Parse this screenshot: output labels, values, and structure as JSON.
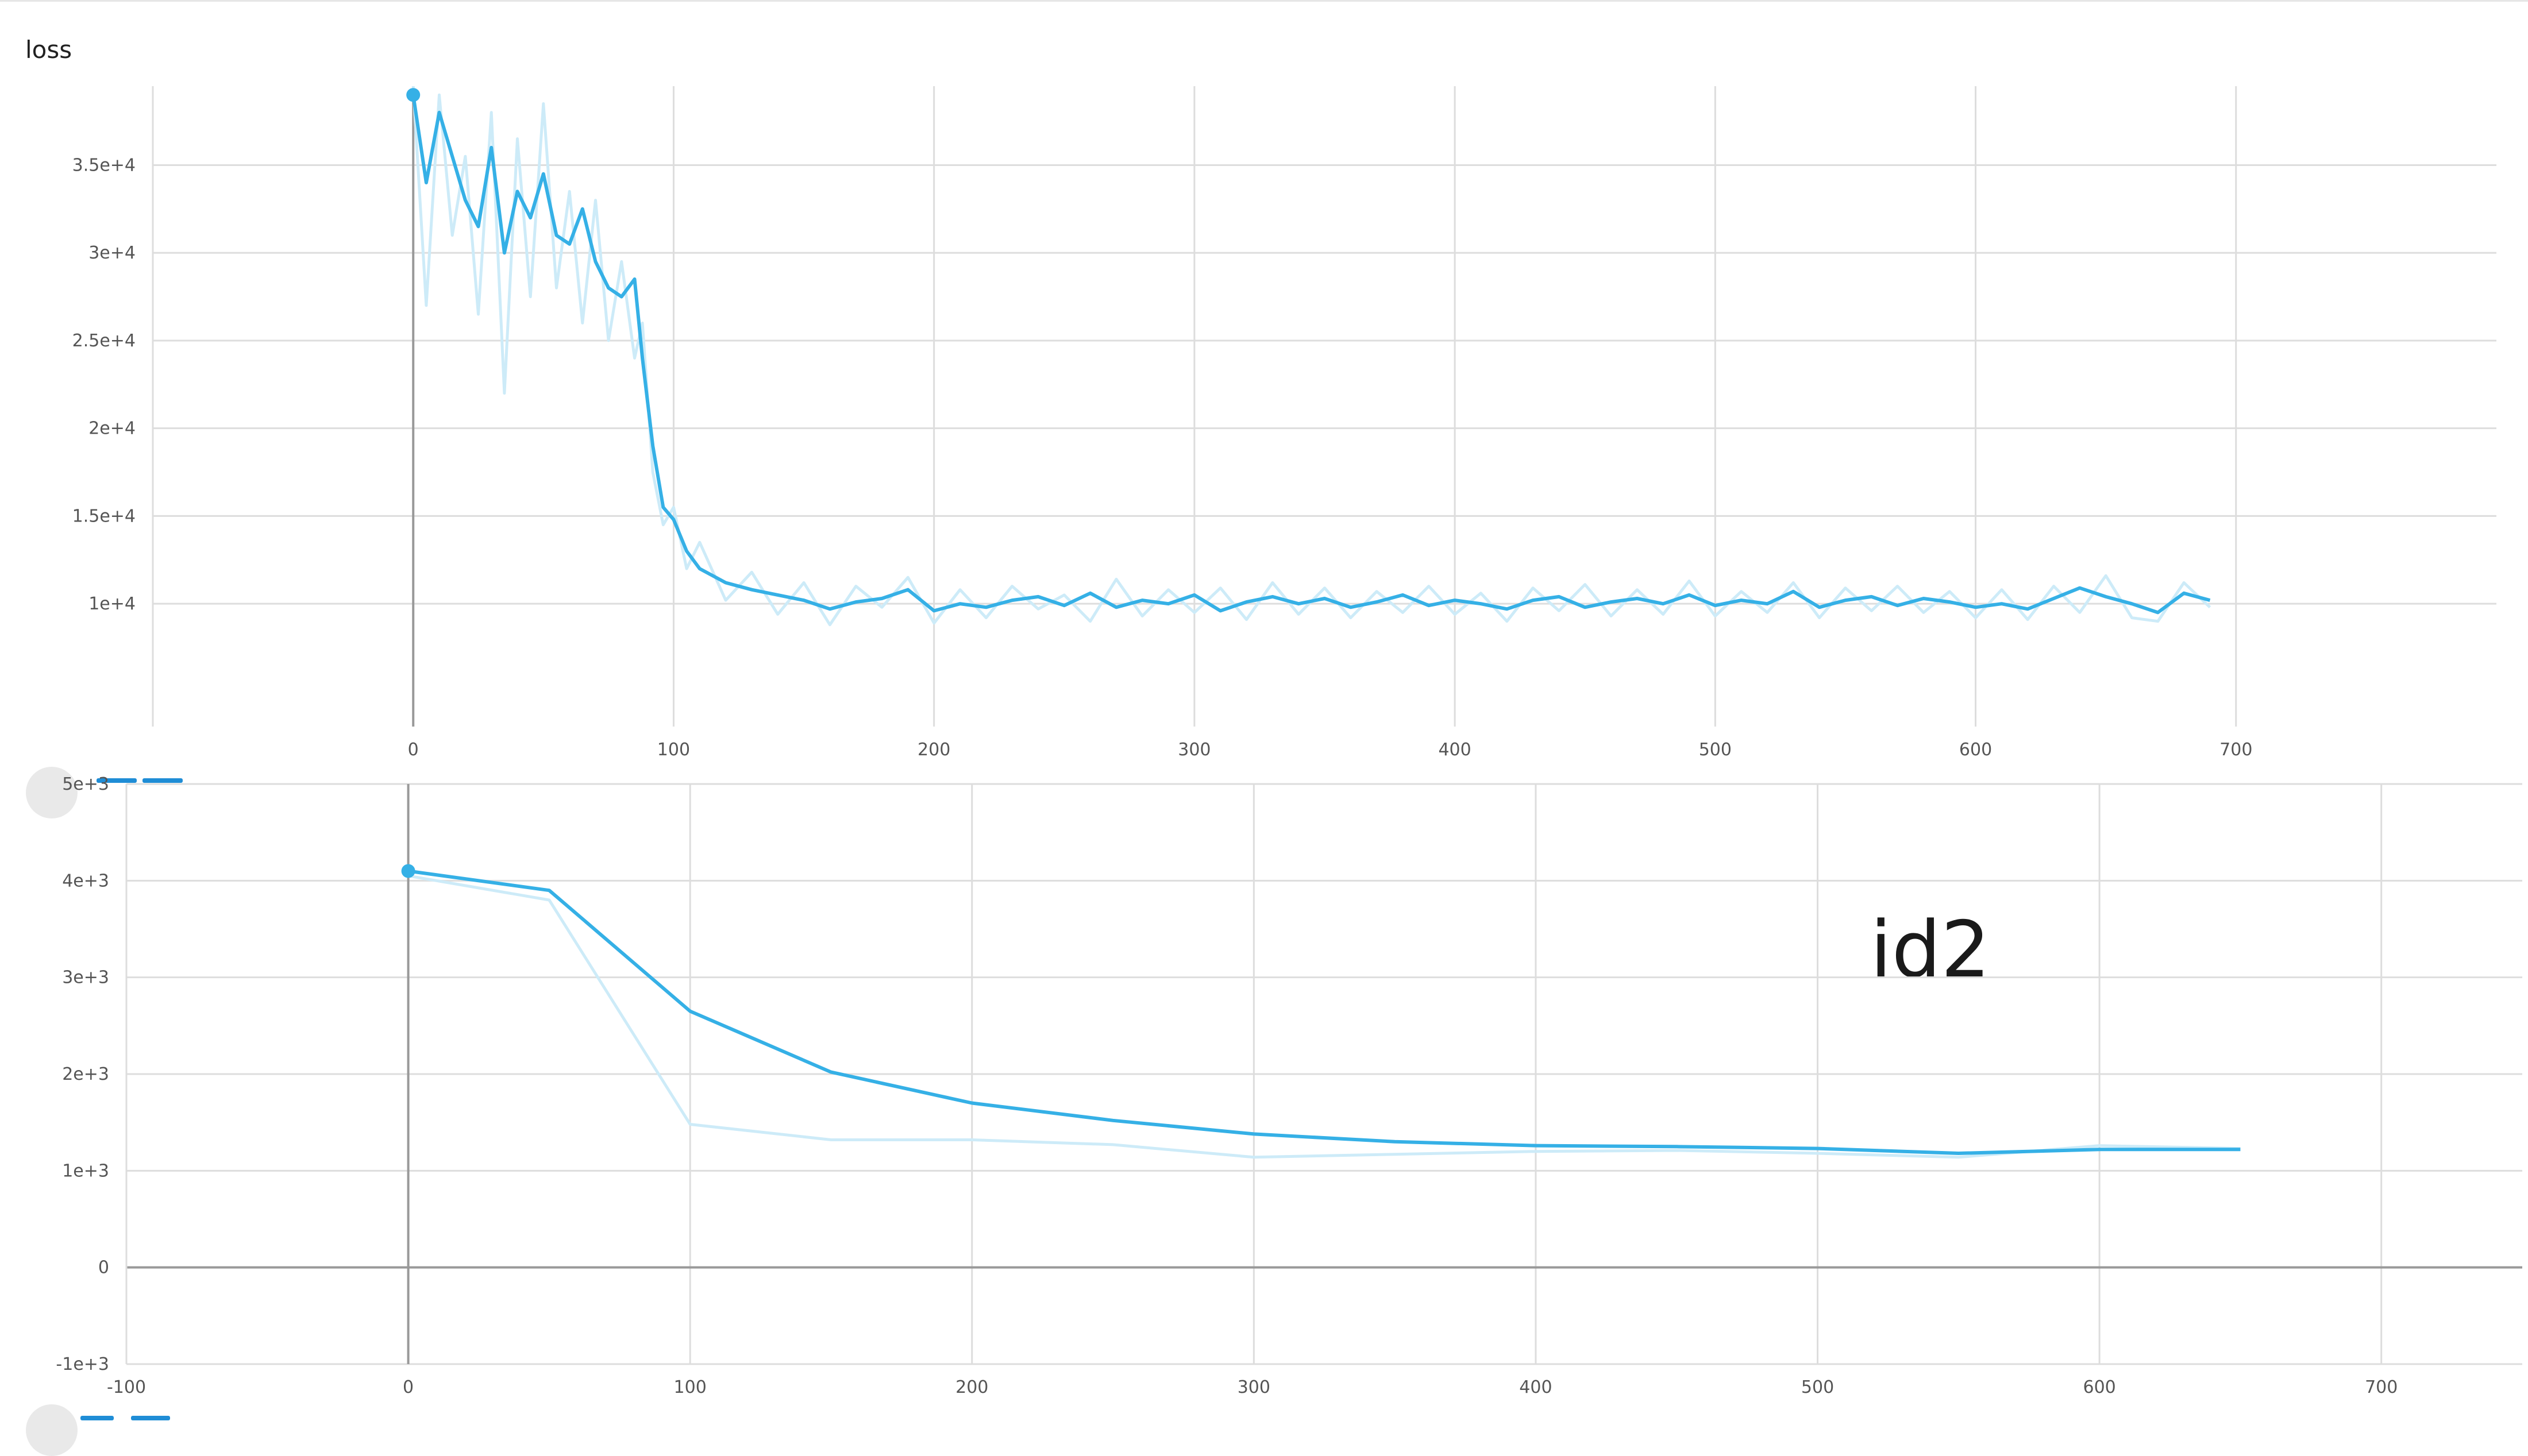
{
  "chart_data": [
    {
      "type": "line",
      "title": "loss",
      "xlabel": "",
      "ylabel": "",
      "xlim": [
        -100,
        800
      ],
      "ylim": [
        3000,
        39500
      ],
      "x_ticks": [
        0,
        100,
        200,
        300,
        400,
        500,
        600,
        700
      ],
      "x_tick_labels": [
        "0",
        "100",
        "200",
        "300",
        "400",
        "500",
        "600",
        "700"
      ],
      "y_ticks": [
        10000,
        15000,
        20000,
        25000,
        30000,
        35000
      ],
      "y_tick_labels": [
        "1e+4",
        "1.5e+4",
        "2e+4",
        "2.5e+4",
        "3e+4",
        "3.5e+4"
      ],
      "grid": true,
      "colors": {
        "smoothed": "#35b0e6",
        "raw": "#cdebf8",
        "grid": "#dddddd",
        "axis": "#999999"
      },
      "series": [
        {
          "x": [
            0,
            5,
            10,
            15,
            20,
            25,
            30,
            35,
            40,
            45,
            50,
            55,
            60,
            65,
            70,
            75,
            80,
            85,
            88,
            92,
            96,
            100,
            105,
            110,
            120,
            130,
            140,
            150,
            160,
            170,
            180,
            190,
            200,
            210,
            220,
            230,
            240,
            250,
            260,
            270,
            280,
            290,
            300,
            310,
            320,
            330,
            340,
            350,
            360,
            370,
            380,
            390,
            400,
            410,
            420,
            430,
            440,
            450,
            460,
            470,
            480,
            490,
            500,
            510,
            520,
            530,
            540,
            550,
            560,
            570,
            580,
            590,
            600,
            610,
            620,
            630,
            640,
            650,
            660,
            670,
            680,
            690
          ],
          "values": [
            39000,
            34000,
            38000,
            35500,
            33000,
            31500,
            36000,
            30000,
            33500,
            32000,
            34500,
            31000,
            30500,
            32500,
            29500,
            28000,
            27500,
            28500,
            24000,
            19000,
            15500,
            14800,
            13000,
            12000,
            11200,
            10800,
            10500,
            10200,
            9700,
            10100,
            10300,
            10800,
            9600,
            10000,
            9800,
            10200,
            10400,
            9900,
            10600,
            9800,
            10200,
            10000,
            10500,
            9600,
            10100,
            10400,
            10000,
            10300,
            9800,
            10100,
            10500,
            9900,
            10200,
            10000,
            9700,
            10200,
            10400,
            9800,
            10100,
            10300,
            10000,
            10500,
            9900,
            10200,
            10000,
            10700,
            9800,
            10200,
            10400,
            9900,
            10300,
            10100,
            9800,
            10000,
            9700,
            10300,
            10900,
            10400,
            10000,
            9500,
            10600,
            10200
          ]
        },
        {
          "x": [
            0,
            5,
            10,
            15,
            20,
            25,
            30,
            35,
            40,
            45,
            50,
            55,
            60,
            65,
            70,
            75,
            80,
            85,
            88,
            92,
            96,
            100,
            105,
            110,
            120,
            130,
            140,
            150,
            160,
            170,
            180,
            190,
            200,
            210,
            220,
            230,
            240,
            250,
            260,
            270,
            280,
            290,
            300,
            310,
            320,
            330,
            340,
            350,
            360,
            370,
            380,
            390,
            400,
            410,
            420,
            430,
            440,
            450,
            460,
            470,
            480,
            490,
            500,
            510,
            520,
            530,
            540,
            550,
            560,
            570,
            580,
            590,
            600,
            610,
            620,
            630,
            640,
            650,
            660,
            670,
            680,
            690
          ],
          "values": [
            39500,
            27000,
            39000,
            31000,
            35500,
            26500,
            38000,
            22000,
            36500,
            27500,
            38500,
            28000,
            33500,
            26000,
            33000,
            25000,
            29500,
            24000,
            26000,
            17500,
            14500,
            15500,
            12000,
            13500,
            10200,
            11800,
            9400,
            11200,
            8800,
            11000,
            9800,
            11500,
            8900,
            10800,
            9200,
            11000,
            9700,
            10500,
            9000,
            11400,
            9300,
            10800,
            9500,
            10900,
            9100,
            11200,
            9400,
            10900,
            9200,
            10700,
            9500,
            11000,
            9400,
            10600,
            9000,
            10900,
            9600,
            11100,
            9300,
            10800,
            9400,
            11300,
            9300,
            10700,
            9500,
            11200,
            9200,
            10900,
            9600,
            11000,
            9500,
            10700,
            9200,
            10800,
            9100,
            11000,
            9500,
            11600,
            9200,
            9000,
            11200,
            9800
          ]
        }
      ]
    },
    {
      "type": "line",
      "title": "",
      "xlabel": "",
      "ylabel": "",
      "xlim": [
        -100,
        750
      ],
      "ylim": [
        -1000,
        5000
      ],
      "x_ticks": [
        -100,
        0,
        100,
        200,
        300,
        400,
        500,
        600,
        700
      ],
      "x_tick_labels": [
        "-100",
        "0",
        "100",
        "200",
        "300",
        "400",
        "500",
        "600",
        "700"
      ],
      "y_ticks": [
        -1000,
        0,
        1000,
        2000,
        3000,
        4000,
        5000
      ],
      "y_tick_labels": [
        "-1e+3",
        "0",
        "1e+3",
        "2e+3",
        "3e+3",
        "4e+3",
        "5e+3"
      ],
      "grid": true,
      "annotation": "id2",
      "colors": {
        "smoothed": "#35b0e6",
        "raw": "#cdebf8",
        "grid": "#dddddd",
        "axis": "#999999"
      },
      "series": [
        {
          "x": [
            0,
            50,
            100,
            150,
            200,
            250,
            300,
            350,
            400,
            450,
            500,
            550,
            600,
            650
          ],
          "values": [
            4100,
            3900,
            2650,
            2020,
            1700,
            1520,
            1380,
            1300,
            1260,
            1250,
            1230,
            1180,
            1220,
            1220
          ]
        },
        {
          "x": [
            0,
            50,
            100,
            150,
            200,
            250,
            300,
            350,
            400,
            450,
            500,
            550,
            600,
            650
          ],
          "values": [
            4050,
            3800,
            1480,
            1320,
            1320,
            1270,
            1140,
            1170,
            1200,
            1210,
            1180,
            1140,
            1260,
            1230
          ]
        }
      ]
    }
  ]
}
